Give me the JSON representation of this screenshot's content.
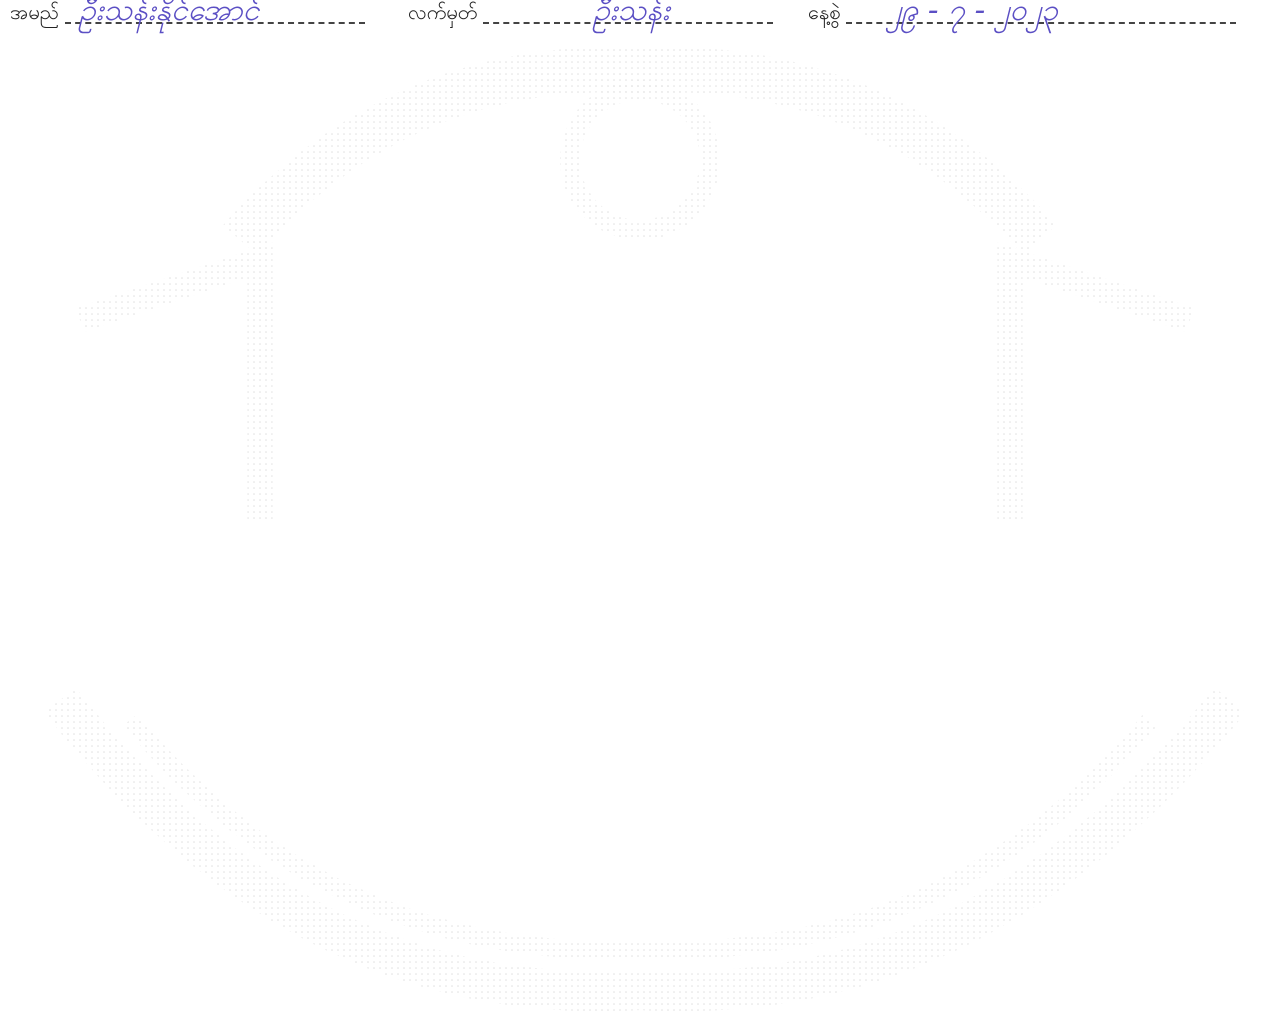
{
  "form": {
    "fields": [
      {
        "label": "အမည်",
        "value": "ဦးသန်းနိုင်အောင်"
      },
      {
        "label": "လက်မှတ်",
        "value": "ဦးသန်း"
      },
      {
        "label": "နေ့စွဲ",
        "value": "၂၉ - ၇ - ၂၀၂၃"
      }
    ]
  }
}
